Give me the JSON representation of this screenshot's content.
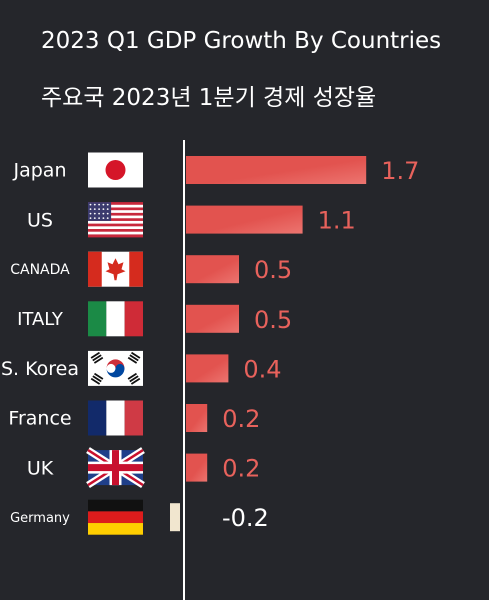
{
  "header": {
    "title": "2023 Q1 GDP Growth By Countries",
    "subtitle": "주요국 2023년 1분기 경제 성장율"
  },
  "colors": {
    "background": "#25262b",
    "bar_positive": "#e2534f",
    "bar_negative": "#f1e6cf",
    "value_positive": "#e8625c",
    "value_negative": "#ffffff",
    "axis": "#ffffff"
  },
  "chart_data": {
    "type": "bar",
    "orientation": "horizontal",
    "title": "2023 Q1 GDP Growth By Countries",
    "subtitle": "주요국 2023년 1분기 경제 성장율",
    "categories": [
      "Japan",
      "US",
      "CANADA",
      "ITALY",
      "S. Korea",
      "France",
      "UK",
      "Germany"
    ],
    "values": [
      1.7,
      1.1,
      0.5,
      0.5,
      0.4,
      0.2,
      0.2,
      -0.2
    ],
    "value_labels": [
      "1.7",
      "1.1",
      "0.5",
      "0.5",
      "0.4",
      "0.2",
      "0.2",
      "-0.2"
    ],
    "flags": [
      "japan-flag",
      "us-flag",
      "canada-flag",
      "italy-flag",
      "south-korea-flag",
      "france-flag",
      "uk-flag",
      "germany-flag"
    ],
    "xlim": [
      -0.2,
      1.7
    ],
    "grid": false,
    "legend": "none"
  }
}
